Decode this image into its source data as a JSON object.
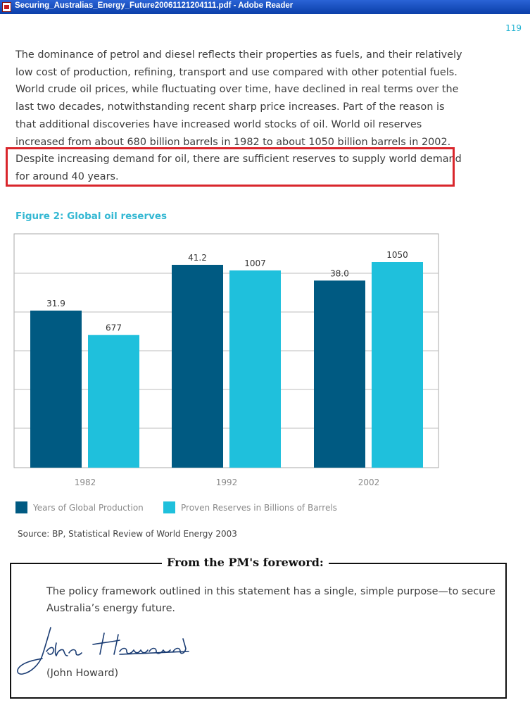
{
  "window": {
    "title": "Securing_Australias_Energy_Future20061121204111.pdf - Adobe Reader",
    "icon": "pdf-document-icon"
  },
  "page": {
    "number": "119",
    "paragraph_lines": [
      "The dominance of petrol and diesel reflects their properties as fuels, and their relatively",
      "low cost of production, refining, transport and use compared with other potential fuels.",
      "World crude oil prices, while fluctuating over time, have declined in real terms over the",
      "last two decades, notwithstanding recent sharp price increases. Part of the reason is",
      "that additional discoveries have increased world stocks of oil. World oil reserves",
      "increased from about 680 billion barrels in 1982 to about 1050 billion barrels in 2002.",
      "Despite increasing demand for oil, there are sufficient reserves to supply world demand",
      "for around 40 years."
    ],
    "highlight_color": "#d9262c"
  },
  "figure": {
    "title": "Figure 2: Global oil reserves",
    "source": "Source: BP, Statistical Review of World Energy 2003"
  },
  "chart_data": {
    "type": "bar",
    "title": "Figure 2: Global oil reserves",
    "categories": [
      "1982",
      "1992",
      "2002"
    ],
    "series": [
      {
        "name": "Years of Global Production",
        "color": "#005a82",
        "values": [
          31.9,
          41.2,
          38.0
        ],
        "labels": [
          "31.9",
          "41.2",
          "38.0"
        ]
      },
      {
        "name": "Proven Reserves in Billions of Barrels",
        "color": "#1fc0dc",
        "values": [
          677,
          1007,
          1050
        ],
        "labels": [
          "677",
          "1007",
          "1050"
        ]
      }
    ],
    "grid": true,
    "legend": "bottom-left",
    "xlabel": "",
    "ylabel": ""
  },
  "foreword": {
    "heading": "From the PM's foreword:",
    "quote_lines": [
      "The policy framework outlined in this statement has a single, simple purpose—to secure",
      "Australia’s energy future."
    ],
    "signature": "John Howard",
    "attribution": "(John Howard)"
  }
}
